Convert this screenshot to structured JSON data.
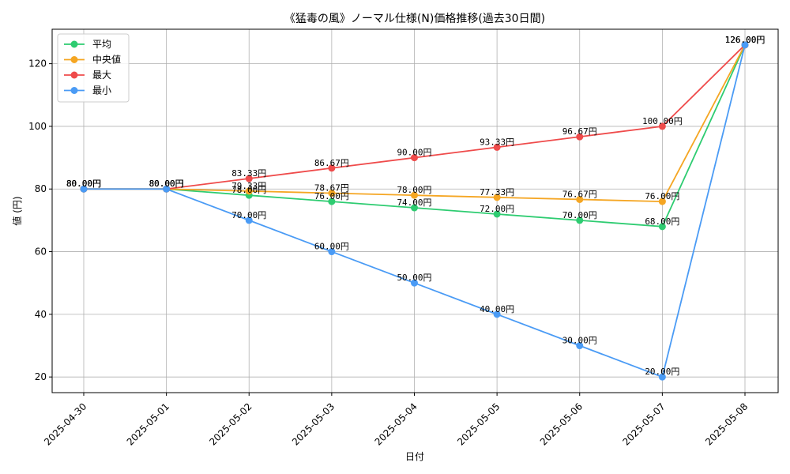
{
  "chart_data": {
    "type": "line",
    "title": "《猛毒の風》ノーマル仕様(N)価格推移(過去30日間)",
    "xlabel": "日付",
    "ylabel": "値 (円)",
    "categories": [
      "2025-04-30",
      "2025-05-01",
      "2025-05-02",
      "2025-05-03",
      "2025-05-04",
      "2025-05-05",
      "2025-05-06",
      "2025-05-07",
      "2025-05-08"
    ],
    "ylim": [
      15,
      131
    ],
    "yticks": [
      20,
      40,
      60,
      80,
      100,
      120
    ],
    "grid": true,
    "legend_position": "top-left",
    "label_suffix": "円",
    "series": [
      {
        "name": "平均",
        "color": "#2ecc71",
        "values": [
          80,
          80,
          78,
          76,
          74,
          72,
          70,
          68,
          126
        ]
      },
      {
        "name": "中央値",
        "color": "#f5a623",
        "values": [
          80,
          80,
          79.33,
          78.67,
          78,
          77.33,
          76.67,
          76,
          126
        ]
      },
      {
        "name": "最大",
        "color": "#ef4b4b",
        "values": [
          80,
          80,
          83.33,
          86.67,
          90,
          93.33,
          96.67,
          100,
          126
        ]
      },
      {
        "name": "最小",
        "color": "#4a9bf5",
        "values": [
          80,
          80,
          70,
          60,
          50,
          40,
          30,
          20,
          126
        ]
      }
    ]
  }
}
